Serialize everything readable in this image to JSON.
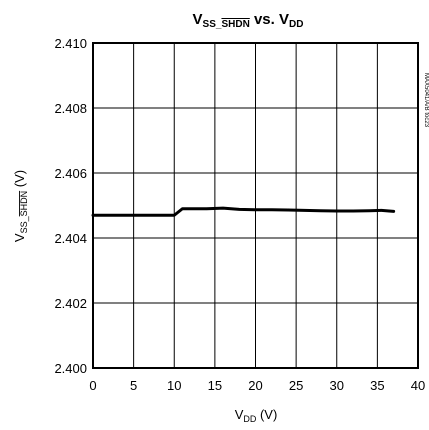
{
  "chart_data": {
    "type": "line",
    "title": {
      "v1": "V",
      "v1_sub": "SS_",
      "v1_sub_over": "SHDN",
      "vs": " vs. ",
      "v2": "V",
      "v2_sub": "DD"
    },
    "xlabel": {
      "main": "V",
      "sub": "DD",
      "unit": " (V)"
    },
    "ylabel": {
      "main": "V",
      "sub": "SS_",
      "sub_over": "SHDN",
      "unit": " (V)"
    },
    "xlim": [
      0,
      40
    ],
    "ylim": [
      2.4,
      2.41
    ],
    "x_ticks": [
      "0",
      "5",
      "10",
      "15",
      "20",
      "25",
      "30",
      "35",
      "40"
    ],
    "y_ticks": [
      "2.400",
      "2.402",
      "2.404",
      "2.406",
      "2.408",
      "2.410"
    ],
    "grid": true,
    "side_code": "MAX5041/A/B toc23",
    "series": [
      {
        "x": [
          0,
          2,
          4,
          6,
          8,
          10,
          10.5,
          11,
          12,
          14,
          16,
          18,
          20,
          22,
          24,
          26,
          28,
          30,
          32,
          34,
          35.5,
          37
        ],
        "y": [
          2.4047,
          2.4047,
          2.4047,
          2.4047,
          2.4047,
          2.4047,
          2.4048,
          2.4049,
          2.4049,
          2.4049,
          2.40492,
          2.40488,
          2.40487,
          2.40487,
          2.40486,
          2.40485,
          2.40484,
          2.40483,
          2.40483,
          2.40484,
          2.40485,
          2.40482
        ]
      }
    ]
  }
}
